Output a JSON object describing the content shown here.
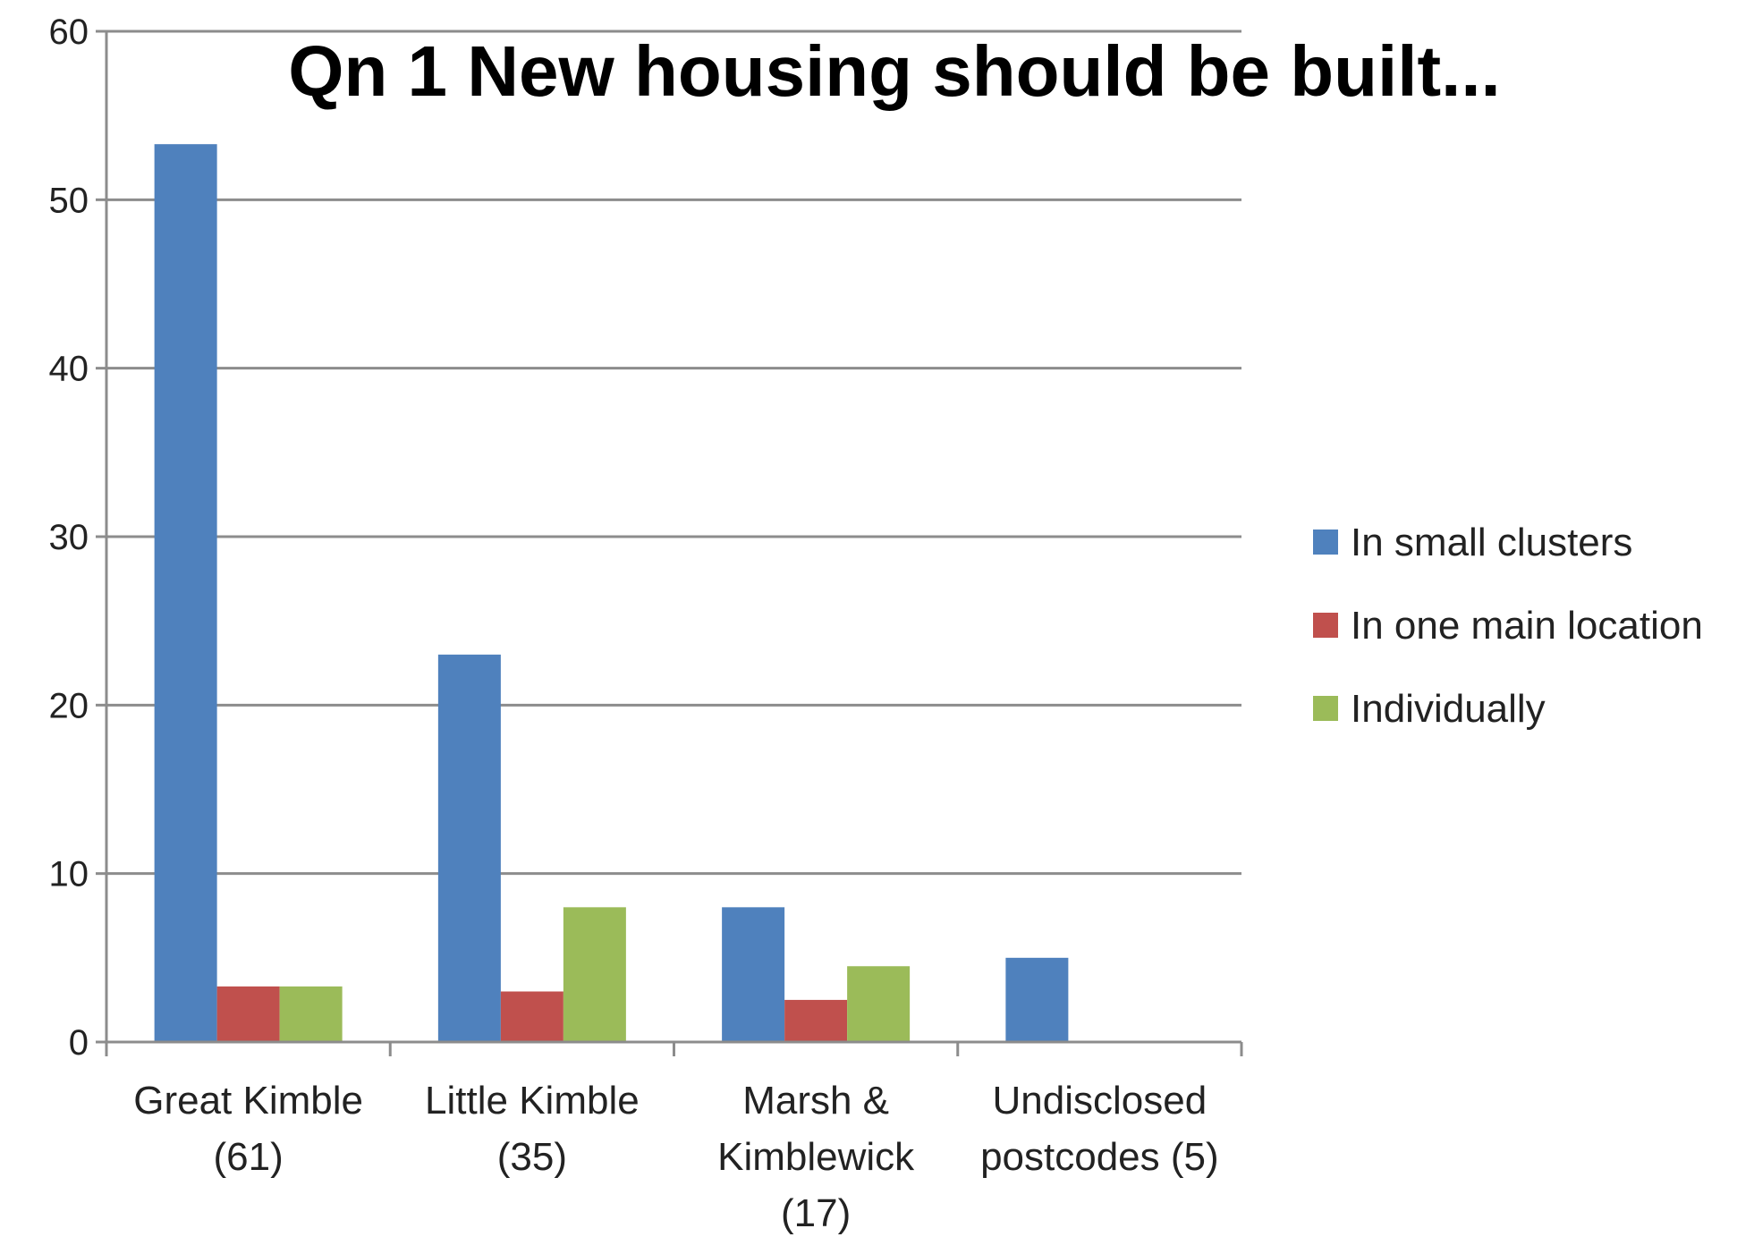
{
  "chart_data": {
    "type": "bar",
    "title": "Qn 1 New housing should be built...",
    "xlabel": "",
    "ylabel": "",
    "ylim": [
      0,
      60
    ],
    "yticks": [
      0,
      10,
      20,
      30,
      40,
      50,
      60
    ],
    "grid": true,
    "legend_position": "right",
    "categories": [
      [
        "Great Kimble",
        "(61)"
      ],
      [
        "Little Kimble",
        "(35)"
      ],
      [
        "Marsh &",
        "Kimblewick",
        "(17)"
      ],
      [
        "Undisclosed",
        "postcodes (5)"
      ]
    ],
    "series": [
      {
        "name": "In small clusters",
        "color": "#4F81BD",
        "values": [
          53.3,
          23,
          8,
          5
        ]
      },
      {
        "name": "In one main location",
        "color": "#C0504D",
        "values": [
          3.3,
          3,
          2.5,
          0
        ]
      },
      {
        "name": "Individually",
        "color": "#9BBB59",
        "values": [
          3.3,
          8,
          4.5,
          0
        ]
      }
    ]
  }
}
